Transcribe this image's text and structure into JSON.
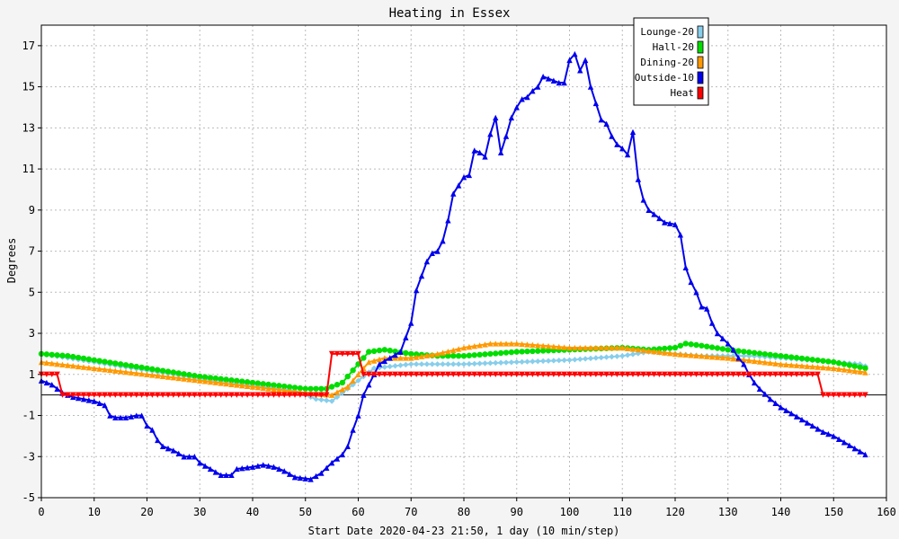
{
  "chart_data": {
    "type": "line",
    "title": "Heating in Essex",
    "xlabel": "Start Date 2020-04-23 21:50, 1 day (10 min/step)",
    "ylabel": "Degrees",
    "xlim": [
      0,
      160
    ],
    "ylim": [
      -5,
      18
    ],
    "x_ticks": [
      0,
      10,
      20,
      30,
      40,
      50,
      60,
      70,
      80,
      90,
      100,
      110,
      120,
      130,
      140,
      150,
      160
    ],
    "y_ticks": [
      -5,
      -3,
      -1,
      1,
      3,
      5,
      7,
      9,
      11,
      13,
      15,
      17
    ],
    "grid": true,
    "legend_position": "top-right",
    "reference_line": 0,
    "series": [
      {
        "name": "Lounge-20",
        "color": "#87ceeb",
        "marker": "diamond",
        "points": [
          [
            0,
            2.0
          ],
          [
            5,
            1.8
          ],
          [
            10,
            1.6
          ],
          [
            20,
            1.2
          ],
          [
            30,
            0.8
          ],
          [
            40,
            0.5
          ],
          [
            48,
            0.2
          ],
          [
            52,
            -0.2
          ],
          [
            55,
            -0.3
          ],
          [
            58,
            0.3
          ],
          [
            61,
            0.9
          ],
          [
            63,
            1.3
          ],
          [
            70,
            1.5
          ],
          [
            80,
            1.5
          ],
          [
            90,
            1.6
          ],
          [
            100,
            1.7
          ],
          [
            105,
            1.8
          ],
          [
            110,
            1.9
          ],
          [
            115,
            2.1
          ],
          [
            120,
            2.0
          ],
          [
            125,
            1.9
          ],
          [
            130,
            1.9
          ],
          [
            135,
            1.9
          ],
          [
            140,
            1.8
          ],
          [
            145,
            1.7
          ],
          [
            150,
            1.6
          ],
          [
            155,
            1.5
          ],
          [
            156,
            1.4
          ]
        ]
      },
      {
        "name": "Hall-20",
        "color": "#00dd00",
        "marker": "circle",
        "points": [
          [
            0,
            2.0
          ],
          [
            5,
            1.9
          ],
          [
            10,
            1.7
          ],
          [
            20,
            1.3
          ],
          [
            30,
            0.9
          ],
          [
            40,
            0.6
          ],
          [
            50,
            0.3
          ],
          [
            54,
            0.3
          ],
          [
            57,
            0.6
          ],
          [
            59,
            1.2
          ],
          [
            61,
            1.8
          ],
          [
            62,
            2.1
          ],
          [
            65,
            2.2
          ],
          [
            70,
            2.0
          ],
          [
            75,
            1.9
          ],
          [
            80,
            1.9
          ],
          [
            90,
            2.1
          ],
          [
            100,
            2.2
          ],
          [
            110,
            2.3
          ],
          [
            115,
            2.2
          ],
          [
            120,
            2.3
          ],
          [
            122,
            2.5
          ],
          [
            125,
            2.4
          ],
          [
            130,
            2.2
          ],
          [
            140,
            1.9
          ],
          [
            150,
            1.6
          ],
          [
            156,
            1.3
          ]
        ]
      },
      {
        "name": "Dining-20",
        "color": "#ff9900",
        "marker": "triangle-up",
        "points": [
          [
            0,
            1.6
          ],
          [
            10,
            1.3
          ],
          [
            20,
            1.0
          ],
          [
            30,
            0.7
          ],
          [
            40,
            0.4
          ],
          [
            50,
            0.1
          ],
          [
            55,
            0.0
          ],
          [
            58,
            0.4
          ],
          [
            60,
            1.0
          ],
          [
            62,
            1.6
          ],
          [
            65,
            1.8
          ],
          [
            70,
            1.8
          ],
          [
            75,
            2.0
          ],
          [
            80,
            2.3
          ],
          [
            85,
            2.5
          ],
          [
            90,
            2.5
          ],
          [
            95,
            2.4
          ],
          [
            100,
            2.3
          ],
          [
            110,
            2.3
          ],
          [
            120,
            2.0
          ],
          [
            130,
            1.8
          ],
          [
            140,
            1.5
          ],
          [
            150,
            1.3
          ],
          [
            156,
            1.1
          ]
        ]
      },
      {
        "name": "Outside-10",
        "color": "#0000ee",
        "marker": "triangle-up",
        "points": [
          [
            0,
            0.7
          ],
          [
            2,
            0.5
          ],
          [
            4,
            0.1
          ],
          [
            6,
            -0.1
          ],
          [
            8,
            -0.2
          ],
          [
            10,
            -0.3
          ],
          [
            12,
            -0.5
          ],
          [
            13,
            -1.0
          ],
          [
            14,
            -1.1
          ],
          [
            16,
            -1.1
          ],
          [
            18,
            -1.0
          ],
          [
            19,
            -1.0
          ],
          [
            20,
            -1.5
          ],
          [
            21,
            -1.7
          ],
          [
            22,
            -2.2
          ],
          [
            23,
            -2.5
          ],
          [
            25,
            -2.7
          ],
          [
            27,
            -3.0
          ],
          [
            29,
            -3.0
          ],
          [
            30,
            -3.3
          ],
          [
            32,
            -3.6
          ],
          [
            34,
            -3.9
          ],
          [
            36,
            -3.9
          ],
          [
            37,
            -3.6
          ],
          [
            40,
            -3.5
          ],
          [
            42,
            -3.4
          ],
          [
            44,
            -3.5
          ],
          [
            46,
            -3.7
          ],
          [
            48,
            -4.0
          ],
          [
            51,
            -4.1
          ],
          [
            53,
            -3.8
          ],
          [
            55,
            -3.3
          ],
          [
            57,
            -2.9
          ],
          [
            58,
            -2.5
          ],
          [
            59,
            -1.7
          ],
          [
            60,
            -1.0
          ],
          [
            61,
            0.0
          ],
          [
            62,
            0.5
          ],
          [
            63,
            1.0
          ],
          [
            64,
            1.5
          ],
          [
            66,
            1.8
          ],
          [
            68,
            2.1
          ],
          [
            70,
            3.5
          ],
          [
            71,
            5.1
          ],
          [
            72,
            5.8
          ],
          [
            73,
            6.5
          ],
          [
            74,
            6.9
          ],
          [
            75,
            7.0
          ],
          [
            76,
            7.5
          ],
          [
            77,
            8.5
          ],
          [
            78,
            9.8
          ],
          [
            79,
            10.2
          ],
          [
            80,
            10.6
          ],
          [
            81,
            10.7
          ],
          [
            82,
            11.9
          ],
          [
            83,
            11.8
          ],
          [
            84,
            11.6
          ],
          [
            85,
            12.7
          ],
          [
            86,
            13.5
          ],
          [
            87,
            11.8
          ],
          [
            88,
            12.6
          ],
          [
            89,
            13.5
          ],
          [
            90,
            14.0
          ],
          [
            91,
            14.4
          ],
          [
            92,
            14.5
          ],
          [
            93,
            14.8
          ],
          [
            94,
            15.0
          ],
          [
            95,
            15.5
          ],
          [
            96,
            15.4
          ],
          [
            97,
            15.3
          ],
          [
            98,
            15.2
          ],
          [
            99,
            15.2
          ],
          [
            100,
            16.3
          ],
          [
            101,
            16.6
          ],
          [
            102,
            15.8
          ],
          [
            103,
            16.3
          ],
          [
            104,
            15.0
          ],
          [
            105,
            14.2
          ],
          [
            106,
            13.4
          ],
          [
            107,
            13.2
          ],
          [
            108,
            12.6
          ],
          [
            109,
            12.2
          ],
          [
            110,
            12.0
          ],
          [
            111,
            11.7
          ],
          [
            112,
            12.8
          ],
          [
            113,
            10.5
          ],
          [
            114,
            9.5
          ],
          [
            115,
            9.0
          ],
          [
            116,
            8.8
          ],
          [
            117,
            8.6
          ],
          [
            118,
            8.4
          ],
          [
            120,
            8.3
          ],
          [
            121,
            7.8
          ],
          [
            122,
            6.2
          ],
          [
            123,
            5.5
          ],
          [
            124,
            5.0
          ],
          [
            125,
            4.3
          ],
          [
            126,
            4.2
          ],
          [
            127,
            3.5
          ],
          [
            128,
            3.0
          ],
          [
            130,
            2.5
          ],
          [
            131,
            2.2
          ],
          [
            132,
            1.8
          ],
          [
            133,
            1.5
          ],
          [
            134,
            1.0
          ],
          [
            135,
            0.6
          ],
          [
            136,
            0.3
          ],
          [
            138,
            -0.2
          ],
          [
            140,
            -0.6
          ],
          [
            142,
            -0.9
          ],
          [
            144,
            -1.2
          ],
          [
            146,
            -1.5
          ],
          [
            148,
            -1.8
          ],
          [
            150,
            -2.0
          ],
          [
            152,
            -2.3
          ],
          [
            154,
            -2.6
          ],
          [
            156,
            -2.9
          ]
        ]
      },
      {
        "name": "Heat",
        "color": "#ff0000",
        "marker": "triangle-down",
        "points": [
          [
            0,
            1.0
          ],
          [
            3,
            1.0
          ],
          [
            4,
            0.0
          ],
          [
            54,
            0.0
          ],
          [
            55,
            2.0
          ],
          [
            60,
            2.0
          ],
          [
            61,
            1.0
          ],
          [
            147,
            1.0
          ],
          [
            148,
            0.0
          ],
          [
            156,
            0.0
          ]
        ]
      }
    ]
  }
}
